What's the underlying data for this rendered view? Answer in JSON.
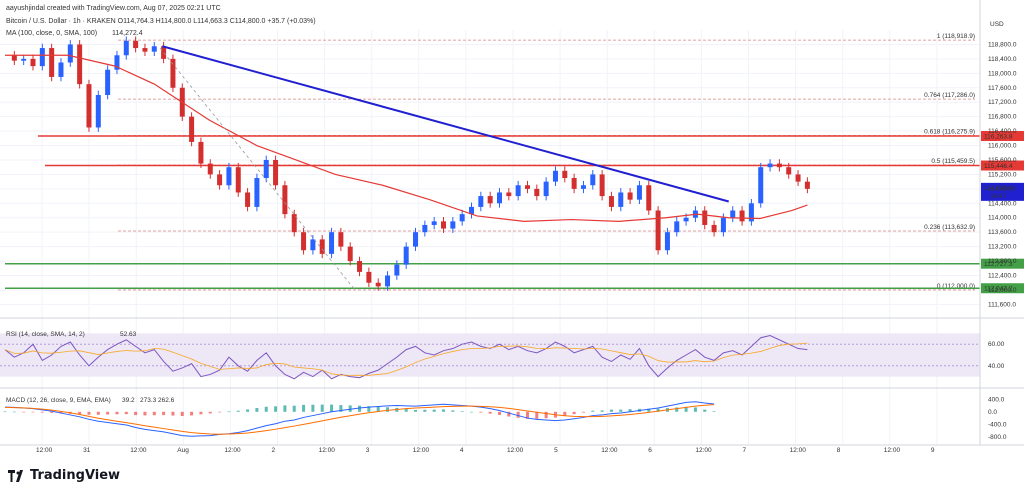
{
  "header": {
    "created_by": "aayushjindal created with TradingView.com, Aug 07, 2025 02:21 UTC",
    "symbol_line": "Bitcoin / U.S. Dollar · 1h · KRAKEN  O114,764.3  H114,800.0  L114,663.3  C114,800.0  +35.7 (+0.03%)",
    "ma_line": "MA (100, close, 0, SMA, 100)",
    "ma_value": "114,272.4",
    "currency": "USD"
  },
  "colors": {
    "up": "#26a69a",
    "down": "#ef5350",
    "candle_up": "#2962ff",
    "candle_down": "#d32f2f",
    "trendline": "#2020d0",
    "ma": "#e53935",
    "fib_line": "#d05050",
    "support": "#43a047",
    "resistance": "#e53935",
    "rsi_line": "#7e57c2",
    "rsi_band": "#ede7f6",
    "macd_line": "#2962ff",
    "signal_line": "#ff6d00"
  },
  "chart_data": {
    "type": "candlestick",
    "title": "Bitcoin / U.S. Dollar · 1h · KRAKEN",
    "y_axis": {
      "ticks": [
        "118,800.0",
        "118,400.0",
        "118,000.0",
        "117,600.0",
        "117,200.0",
        "116,800.0",
        "116,400.0",
        "116,000.0",
        "115,600.0",
        "115,200.0",
        "114,800.0",
        "114,400.0",
        "114,000.0",
        "113,600.0",
        "113,200.0",
        "112,800.0",
        "112,400.0",
        "112,000.0",
        "111,600.0"
      ],
      "ylim": [
        111500,
        119200
      ]
    },
    "x_axis": {
      "ticks": [
        "12:00",
        "31",
        "12:00",
        "Aug",
        "12:00",
        "2",
        "12:00",
        "3",
        "12:00",
        "4",
        "12:00",
        "5",
        "12:00",
        "6",
        "12:00",
        "7",
        "12:00",
        "8",
        "12:00",
        "9"
      ]
    },
    "price_path": [
      118500,
      118350,
      118400,
      118200,
      118700,
      117900,
      118300,
      118800,
      117700,
      116500,
      117400,
      118100,
      118500,
      118900,
      118700,
      118600,
      118750,
      118400,
      117600,
      116800,
      116100,
      115500,
      115200,
      114900,
      115400,
      114700,
      114300,
      115100,
      115600,
      114900,
      114100,
      113600,
      113100,
      113400,
      113000,
      113600,
      113200,
      112800,
      112500,
      112200,
      112100,
      112400,
      112700,
      113200,
      113600,
      113800,
      113900,
      113700,
      113900,
      114100,
      114300,
      114600,
      114400,
      114700,
      114600,
      114900,
      114800,
      114600,
      115000,
      115300,
      115100,
      114800,
      114900,
      115200,
      114600,
      114300,
      114700,
      114500,
      114900,
      114200,
      113100,
      113600,
      113900,
      114000,
      114200,
      113800,
      113600,
      114000,
      114200,
      113900,
      114400,
      115400,
      115500,
      115400,
      115200,
      115000,
      114800
    ],
    "moving_average": {
      "name": "MA (100, close, 0, SMA, 100)",
      "points": [
        [
          0,
          118500
        ],
        [
          40,
          118500
        ],
        [
          70,
          118200
        ],
        [
          95,
          117700
        ],
        [
          130,
          116700
        ],
        [
          160,
          116000
        ],
        [
          185,
          115600
        ],
        [
          210,
          115200
        ],
        [
          240,
          114900
        ],
        [
          270,
          114500
        ],
        [
          300,
          114050
        ],
        [
          330,
          113900
        ],
        [
          360,
          113950
        ],
        [
          390,
          113900
        ],
        [
          420,
          114000
        ],
        [
          440,
          114100
        ],
        [
          460,
          114000
        ],
        [
          480,
          113980
        ],
        [
          500,
          114200
        ],
        [
          510,
          114350
        ]
      ]
    },
    "trendline": {
      "from": [
        100,
        118750
      ],
      "to": [
        460,
        114450
      ]
    },
    "horizontal_levels": [
      {
        "label": "116,263.8",
        "value": 116263.8,
        "kind": "resistance"
      },
      {
        "label": "115,446.4",
        "value": 115446.4,
        "kind": "resistance"
      },
      {
        "label": "112,727.3",
        "value": 112727.3,
        "kind": "support"
      },
      {
        "label": "112,047.2",
        "value": 112047.2,
        "kind": "support"
      }
    ],
    "fibonacci": [
      {
        "ratio": "1",
        "label": "1 (118,918.9)",
        "value": 118918.9
      },
      {
        "ratio": "0.764",
        "label": "0.764 (117,286.0)",
        "value": 117286.0
      },
      {
        "ratio": "0.618",
        "label": "0.618 (116,275.9)",
        "value": 116275.9
      },
      {
        "ratio": "0.5",
        "label": "0.5 (115,459.5)",
        "value": 115459.5
      },
      {
        "ratio": "0.236",
        "label": "0.236 (113,632.9)",
        "value": 113632.9
      },
      {
        "ratio": "0",
        "label": "0 (112,000.0)",
        "value": 112000.0
      }
    ],
    "price_tags": [
      {
        "label": "114,800.0",
        "sub": "38:47",
        "value": 114800,
        "kind": "current"
      }
    ],
    "rsi": {
      "label": "RSI (14, close, SMA, 14, 2)",
      "value": "52.63",
      "ticks": [
        "60.00",
        "40.00"
      ],
      "ylim": [
        25,
        75
      ],
      "band": [
        30,
        70
      ],
      "values": [
        55,
        48,
        52,
        60,
        45,
        50,
        58,
        62,
        50,
        40,
        48,
        55,
        60,
        64,
        58,
        52,
        55,
        44,
        35,
        38,
        42,
        30,
        32,
        36,
        48,
        40,
        35,
        45,
        52,
        40,
        32,
        28,
        34,
        30,
        36,
        28,
        32,
        30,
        29,
        33,
        36,
        42,
        48,
        55,
        58,
        52,
        50,
        54,
        56,
        60,
        62,
        58,
        56,
        60,
        55,
        58,
        54,
        52,
        56,
        62,
        58,
        52,
        55,
        58,
        48,
        44,
        50,
        46,
        56,
        40,
        30,
        38,
        45,
        50,
        55,
        48,
        45,
        52,
        54,
        50,
        58,
        66,
        68,
        64,
        60,
        56,
        55
      ]
    },
    "macd": {
      "label": "MACD (12, 26, close, 9, EMA, EMA)",
      "values_text": [
        "39.2",
        "273.3",
        "262.6"
      ],
      "ticks": [
        "400.0",
        "0.0",
        "-400.0",
        "-800.0"
      ],
      "ylim": [
        -900,
        600
      ],
      "macd": [
        150,
        140,
        120,
        100,
        60,
        20,
        -40,
        -100,
        -160,
        -240,
        -300,
        -340,
        -380,
        -420,
        -500,
        -560,
        -600,
        -640,
        -700,
        -760,
        -780,
        -770,
        -760,
        -720,
        -700,
        -660,
        -600,
        -520,
        -440,
        -380,
        -300,
        -260,
        -180,
        -120,
        -60,
        0,
        40,
        80,
        120,
        150,
        170,
        190,
        200,
        190,
        180,
        200,
        220,
        240,
        220,
        200,
        180,
        150,
        100,
        40,
        -40,
        -120,
        -200,
        -240,
        -260,
        -280,
        -260,
        -220,
        -180,
        -120,
        -100,
        -60,
        -40,
        0,
        40,
        80,
        120,
        180,
        240,
        300,
        320,
        280,
        250
      ],
      "signal": [
        140,
        135,
        125,
        110,
        85,
        55,
        15,
        -35,
        -85,
        -145,
        -205,
        -255,
        -300,
        -345,
        -395,
        -445,
        -490,
        -535,
        -580,
        -625,
        -665,
        -690,
        -710,
        -715,
        -710,
        -695,
        -675,
        -640,
        -600,
        -555,
        -505,
        -455,
        -400,
        -345,
        -290,
        -230,
        -175,
        -125,
        -75,
        -30,
        10,
        45,
        75,
        100,
        120,
        135,
        150,
        165,
        175,
        180,
        180,
        175,
        160,
        140,
        110,
        70,
        25,
        -15,
        -55,
        -95,
        -125,
        -145,
        -155,
        -155,
        -145,
        -130,
        -110,
        -85,
        -55,
        -20,
        20,
        60,
        100,
        140,
        180,
        210,
        230
      ]
    }
  },
  "footer": {
    "brand": "TradingView"
  }
}
